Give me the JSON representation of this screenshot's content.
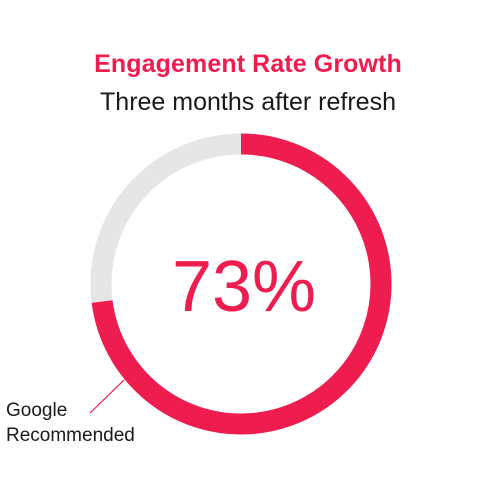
{
  "chart_data": {
    "type": "pie",
    "title": "Engagement Rate Growth",
    "subtitle": "Three months after refresh",
    "center_label": "73%",
    "slices": [
      {
        "label": "Google Recommended",
        "value": 73
      },
      {
        "label": "",
        "value": 27
      }
    ],
    "annotation": {
      "line1": "Google",
      "line2": "Recommended"
    },
    "colors": {
      "filled": "#ee1c4f",
      "remaining": "#e6e6e6",
      "title": "#ee1c4f",
      "subtitle": "#1a1a1a",
      "annotation_line": "#ee1c4f"
    }
  }
}
